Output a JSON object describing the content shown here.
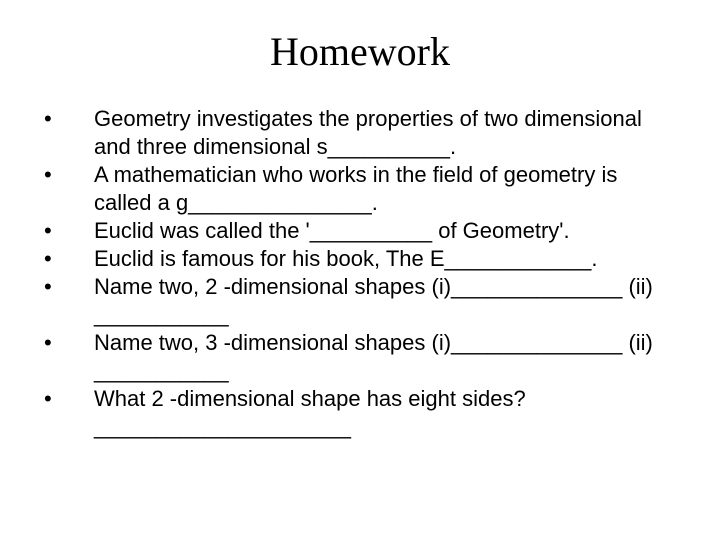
{
  "title": "Homework",
  "items": [
    "Geometry investigates the properties of two dimensional and three dimensional s__________.",
    "A mathematician who works in the field of geometry is called a g_______________.",
    "Euclid was called the '__________ of Geometry'.",
    "Euclid is famous for his book, The E____________.",
    "Name two, 2 -dimensional shapes (i)______________ (ii) ___________",
    "Name two, 3 -dimensional shapes (i)______________ (ii) ___________",
    "What 2 -dimensional shape has eight sides? _____________________"
  ],
  "bullet_char": "•",
  "colors": {
    "background": "#ffffff",
    "text": "#000000"
  },
  "fonts": {
    "title_family": "Times New Roman",
    "title_size_pt": 40,
    "body_family": "Arial",
    "body_size_pt": 22
  }
}
